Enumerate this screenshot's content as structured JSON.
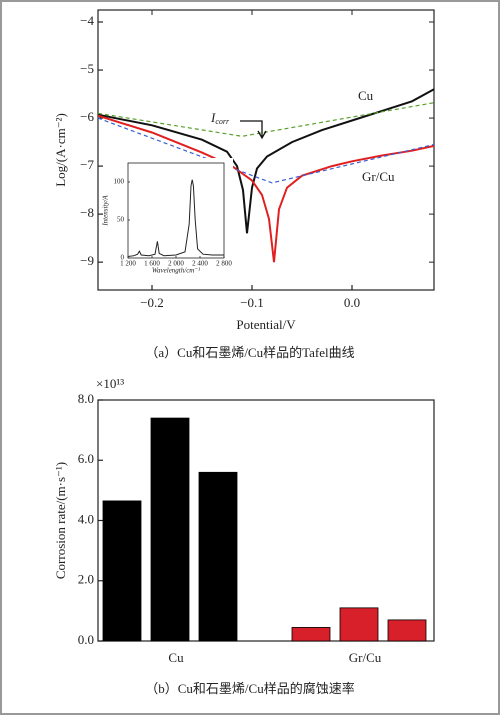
{
  "chart_data": [
    {
      "type": "line",
      "xlabel": "Potential/V",
      "ylabel": "Log/(A·cm⁻²)",
      "caption": "（a）Cu和石墨烯/Cu样品的Tafel曲线",
      "xlim": [
        -0.254,
        0.082
      ],
      "ylim": [
        -9.58,
        -3.75
      ],
      "xticks": [
        {
          "value": -0.2,
          "label": "−0.2"
        },
        {
          "value": -0.1,
          "label": "−0.1"
        },
        {
          "value": 0,
          "label": "0.0"
        }
      ],
      "yticks": [
        {
          "value": -4,
          "label": "−4"
        },
        {
          "value": -5,
          "label": "−5"
        },
        {
          "value": -6,
          "label": "−6"
        },
        {
          "value": -7,
          "label": "−7"
        },
        {
          "value": -8,
          "label": "−8"
        },
        {
          "value": -9,
          "label": "−9"
        }
      ],
      "series": [
        {
          "name": "Cu",
          "color": "#111111",
          "x": [
            -0.254,
            -0.2,
            -0.15,
            -0.125,
            -0.115,
            -0.109,
            -0.105,
            -0.1,
            -0.095,
            -0.085,
            -0.06,
            -0.03,
            0,
            0.03,
            0.06,
            0.082
          ],
          "values": [
            -5.93,
            -6.15,
            -6.45,
            -6.7,
            -7.0,
            -7.5,
            -8.4,
            -7.45,
            -7.05,
            -6.8,
            -6.5,
            -6.25,
            -6.05,
            -5.85,
            -5.65,
            -5.4
          ]
        },
        {
          "name": "Gr/Cu",
          "color": "#e02020",
          "x": [
            -0.254,
            -0.2,
            -0.15,
            -0.12,
            -0.1,
            -0.09,
            -0.083,
            -0.078,
            -0.073,
            -0.065,
            -0.05,
            -0.02,
            0,
            0.03,
            0.06,
            0.082
          ],
          "values": [
            -5.95,
            -6.3,
            -6.72,
            -7.0,
            -7.3,
            -7.6,
            -8.1,
            -9.0,
            -7.9,
            -7.45,
            -7.2,
            -7.0,
            -6.9,
            -6.78,
            -6.68,
            -6.58
          ]
        },
        {
          "color": "#5aa02c",
          "dash": true,
          "x": [
            -0.254,
            -0.11,
            0.082
          ],
          "values": [
            -5.9,
            -6.38,
            -5.68
          ]
        },
        {
          "color": "#3a5fd0",
          "dash": true,
          "x": [
            -0.254,
            -0.08,
            0.082
          ],
          "values": [
            -6.0,
            -7.35,
            -6.55
          ]
        }
      ],
      "annotations": [
        {
          "text": "Cu"
        },
        {
          "text": "Gr/Cu"
        },
        {
          "text": "I",
          "subscript": "corr"
        }
      ],
      "inset": {
        "type": "line",
        "xlabel": "Wavelength/cm⁻¹",
        "ylabel": "Intensity/A",
        "xlim": [
          1200,
          2800
        ],
        "ylim": [
          0,
          125
        ],
        "xticks": [
          {
            "value": 1200,
            "label": "1 200"
          },
          {
            "value": 1600,
            "label": "1 600"
          },
          {
            "value": 2000,
            "label": "2 000"
          },
          {
            "value": 2400,
            "label": "2 400"
          },
          {
            "value": 2800,
            "label": "2 800"
          }
        ],
        "yticks": [
          0,
          50,
          100
        ],
        "color": "#222222",
        "x": [
          1200,
          1300,
          1360,
          1390,
          1420,
          1550,
          1650,
          1690,
          1720,
          1800,
          2000,
          2150,
          2220,
          2250,
          2270,
          2290,
          2320,
          2360,
          2450,
          2600,
          2800
        ],
        "values": [
          2,
          3,
          5,
          9,
          4,
          3,
          5,
          22,
          6,
          3,
          4,
          8,
          45,
          95,
          103,
          95,
          50,
          12,
          5,
          4,
          4
        ]
      }
    },
    {
      "type": "bar",
      "ylabel": "Corrosion rate/(m·s⁻¹)",
      "multiplier": "×10¹³",
      "caption": "（b）Cu和石墨烯/Cu样品的腐蚀速率",
      "categories": [
        "Cu",
        "Gr/Cu"
      ],
      "colors": [
        "#000000",
        "#d8202a"
      ],
      "values": [
        [
          4.65,
          7.4,
          5.6
        ],
        [
          0.45,
          1.1,
          0.7
        ]
      ],
      "ylim": [
        0,
        8.0
      ],
      "yticks": [
        {
          "value": 0,
          "label": "0.0"
        },
        {
          "value": 2,
          "label": "2.0"
        },
        {
          "value": 4,
          "label": "4.0"
        },
        {
          "value": 6,
          "label": "6.0"
        },
        {
          "value": 8,
          "label": "8.0"
        }
      ]
    }
  ]
}
